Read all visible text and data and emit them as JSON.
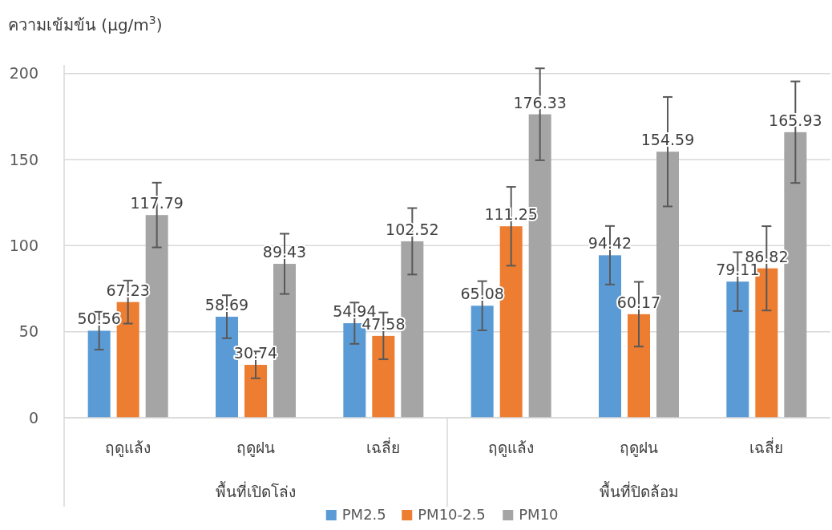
{
  "chart_data": {
    "type": "bar",
    "ylabel": "ความเข้มข้น (µg/m$^{3}$)",
    "categories": [
      "ฤดูแล้ง",
      "ฤดูฝน",
      "เฉลี่ย",
      "ฤดูแล้ง",
      "ฤดูฝน",
      "เฉลี่ย"
    ],
    "annotations": [
      "พื้นที่เปิดโล่ง",
      "พื้นที่ปิดล้อม"
    ],
    "series": [
      {
        "name": "PM2.5",
        "color": "#5b9bd5",
        "values": [
          50.56,
          58.69,
          54.94,
          65.08,
          94.42,
          79.11
        ],
        "errors": [
          11,
          12.5,
          12,
          14.3,
          17,
          17.1
        ]
      },
      {
        "name": "PM10-2.5",
        "color": "#ed7d31",
        "values": [
          67.23,
          30.74,
          47.58,
          111.25,
          60.17,
          86.82
        ],
        "errors": [
          12.5,
          7.8,
          13.6,
          22.9,
          18.8,
          24.5
        ]
      },
      {
        "name": "PM10",
        "color": "#a5a5a5",
        "values": [
          117.79,
          89.43,
          102.52,
          176.33,
          154.59,
          165.93
        ],
        "errors": [
          18.8,
          17.5,
          19.3,
          26.7,
          31.8,
          29.5
        ]
      }
    ],
    "ylim": [
      0,
      205
    ],
    "yticks": [
      0,
      50,
      100,
      150,
      200
    ],
    "grid": "y",
    "legend": "bottom",
    "data_labels": true
  }
}
